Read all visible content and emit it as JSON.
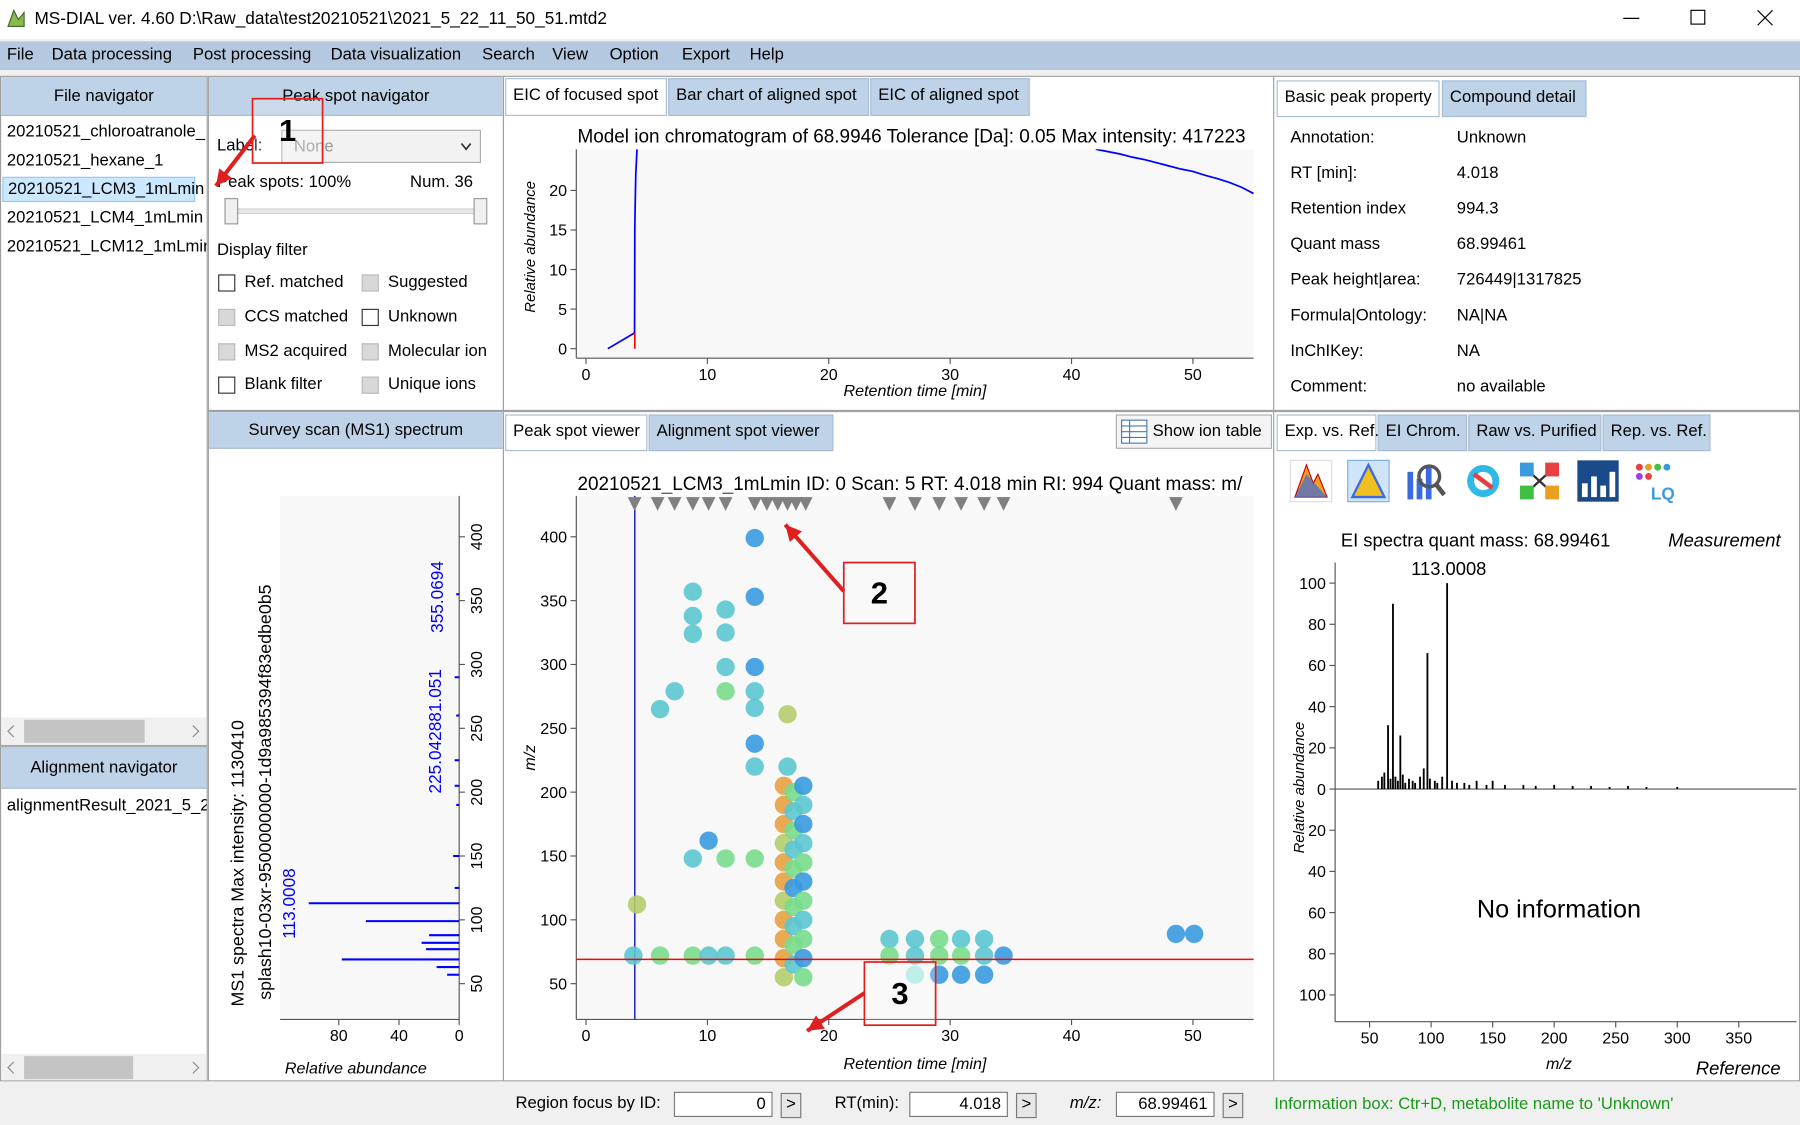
{
  "window": {
    "title": "MS-DIAL ver. 4.60 D:\\Raw_data\\test20210521\\2021_5_22_11_50_51.mtd2"
  },
  "menu": [
    "File",
    "Data processing",
    "Post processing",
    "Data visualization",
    "Search",
    "View",
    "Option",
    "Export",
    "Help"
  ],
  "file_navigator": {
    "title": "File navigator",
    "files": [
      "20210521_chloroatranole_",
      "20210521_hexane_1",
      "20210521_LCM3_1mLmin",
      "20210521_LCM4_1mLmin",
      "20210521_LCM12_1mLmin"
    ],
    "selected": 2
  },
  "alignment_navigator": {
    "title": "Alignment navigator",
    "files": [
      "alignmentResult_2021_5_2"
    ]
  },
  "peak_spot_navigator": {
    "title": "Peak spot navigator",
    "label": "Label:",
    "label_value": "None",
    "peak_spots": "Peak spots: 100%",
    "num": "Num. 36",
    "display_filter": "Display filter",
    "filters": [
      {
        "label": "Ref. matched",
        "enabled": true
      },
      {
        "label": "Suggested",
        "enabled": false
      },
      {
        "label": "CCS matched",
        "enabled": false
      },
      {
        "label": "Unknown",
        "enabled": true
      },
      {
        "label": "MS2 acquired",
        "enabled": false
      },
      {
        "label": "Molecular ion",
        "enabled": false
      },
      {
        "label": "Blank filter",
        "enabled": true
      },
      {
        "label": "Unique ions",
        "enabled": false
      }
    ]
  },
  "eic": {
    "tabs": [
      "EIC of focused spot",
      "Bar chart of aligned spot",
      "EIC of aligned spot"
    ],
    "chart": {
      "type": "line",
      "title": "Model ion chromatogram of 68.9946 Tolerance [Da]: 0.05  Max intensity: 417223",
      "x_label": "Retention time [min]",
      "y_label": "Relative abundance",
      "xlim": [
        -0.8,
        55
      ],
      "ylim": [
        -1.2,
        25.2
      ],
      "xticks": [
        0,
        10,
        20,
        30,
        40,
        50
      ],
      "yticks": [
        0,
        5,
        10,
        15,
        20
      ],
      "series": [
        {
          "color": "#0000ff",
          "x": [
            1.8,
            4.0,
            4.02,
            4.05,
            4.1,
            4.2,
            null,
            42,
            43,
            44,
            45,
            46,
            47,
            48,
            49,
            50,
            51,
            52,
            53,
            54,
            55
          ],
          "values": [
            0,
            2,
            15,
            18,
            22,
            25.2,
            null,
            25.2,
            24.9,
            24.6,
            24.2,
            23.9,
            23.5,
            23.1,
            22.7,
            22.4,
            21.9,
            21.5,
            21.0,
            20.4,
            19.6
          ]
        }
      ]
    }
  },
  "survey_scan": {
    "title": "Survey scan (MS1) spectrum",
    "chart": {
      "type": "bar",
      "y_label": "MS1 spectra Max intensity: 1130410",
      "splash": "splash10-03xr-9500000000-1d9a985394f83edbe0b5",
      "x_label": "Relative abundance",
      "xlim": [
        0,
        119
      ],
      "x_reversed": true,
      "xticks": [
        80,
        40,
        0
      ],
      "ylim": [
        22,
        432
      ],
      "yticks": [
        50,
        100,
        150,
        200,
        250,
        300,
        350,
        400
      ],
      "color": "#0000ff",
      "mz": [
        57,
        63,
        69,
        77,
        82,
        88,
        99,
        113,
        125,
        150,
        190,
        205,
        225,
        260,
        290,
        355
      ],
      "values": [
        8,
        15,
        78,
        22,
        25,
        20,
        62,
        100,
        3,
        4,
        2,
        3,
        3,
        2,
        3,
        2
      ],
      "peak_labels": [
        "113.0008",
        "225.042881.051",
        "355.0694"
      ]
    }
  },
  "peak_spot_viewer": {
    "tabs": [
      "Peak spot viewer",
      "Alignment spot viewer"
    ],
    "button": "Show ion table",
    "chart": {
      "type": "scatter",
      "title": "20210521_LCM3_1mLmin  ID: 0  Scan: 5  RT: 4.018 min  RI: 994  Quant mass: m/",
      "x_label": "Retention time [min]",
      "y_label": "m/z",
      "xlim": [
        -0.8,
        55
      ],
      "ylim": [
        22,
        432
      ],
      "xticks": [
        0,
        10,
        20,
        30,
        40,
        50
      ],
      "yticks": [
        50,
        100,
        150,
        200,
        250,
        300,
        350,
        400
      ],
      "x": [
        13.9,
        8.8,
        8.8,
        8.8,
        11.5,
        11.5,
        13.9,
        7.3,
        6.1,
        11.5,
        11.5,
        13.9,
        13.9,
        13.9,
        16.6,
        13.9,
        13.9,
        16.6,
        10.1,
        8.8,
        11.5,
        13.9,
        4.2,
        3.9,
        6.1,
        8.8,
        10.1,
        11.5,
        13.9,
        16.3,
        16.3,
        16.3,
        16.3,
        16.3,
        16.3,
        16.3,
        16.3,
        16.3,
        16.3,
        16.3,
        17.1,
        17.1,
        17.1,
        17.1,
        17.1,
        17.1,
        17.1,
        17.1,
        17.1,
        17.1,
        17.9,
        17.9,
        17.9,
        17.9,
        17.9,
        17.9,
        17.9,
        17.9,
        17.9,
        17.9,
        17.9,
        25,
        27.1,
        29.1,
        30.9,
        32.8,
        25,
        27.1,
        29.1,
        30.9,
        32.8,
        34.4,
        27.1,
        29.1,
        30.9,
        32.8,
        48.6,
        50.1
      ],
      "values": [
        399,
        357,
        338,
        324,
        343,
        325,
        353,
        279,
        265,
        298,
        279,
        298,
        279,
        266,
        261,
        238,
        220,
        220,
        162,
        148,
        148,
        148,
        112,
        72,
        72,
        72,
        72,
        72,
        72,
        205,
        190,
        175,
        160,
        145,
        130,
        115,
        100,
        85,
        70,
        55,
        200,
        185,
        170,
        155,
        140,
        125,
        110,
        95,
        80,
        65,
        205,
        190,
        175,
        160,
        145,
        130,
        115,
        100,
        85,
        70,
        55,
        85,
        85,
        85,
        85,
        85,
        72,
        72,
        72,
        72,
        72,
        72,
        57,
        57,
        57,
        57,
        89,
        89
      ],
      "colors": [
        "#3a9ae0",
        "#5cc6d0",
        "#5cc6d0",
        "#5cc6d0",
        "#5cc6d0",
        "#5cc6d0",
        "#3a9ae0",
        "#5cc6d0",
        "#5cc6d0",
        "#5cc6d0",
        "#78dc8c",
        "#3a9ae0",
        "#5cc6d0",
        "#5cc6d0",
        "#b4cc6c",
        "#3a9ae0",
        "#5cc6d0",
        "#5cc6d0",
        "#3a9ae0",
        "#5cc6d0",
        "#78dc8c",
        "#78dc8c",
        "#b4cc6c",
        "#5cc6d0",
        "#78dc8c",
        "#78dc8c",
        "#5cc6d0",
        "#5cc6d0",
        "#78dc8c",
        "#e8a040",
        "#e8a040",
        "#e8a040",
        "#b4cc6c",
        "#e8a040",
        "#e8a040",
        "#b4cc6c",
        "#e8a040",
        "#e8a040",
        "#e8a040",
        "#b4cc6c",
        "#78dc8c",
        "#5cc6d0",
        "#78dc8c",
        "#5cc6d0",
        "#78dc8c",
        "#3a9ae0",
        "#78dc8c",
        "#5cc6d0",
        "#78dc8c",
        "#5cc6d0",
        "#3a9ae0",
        "#5cc6d0",
        "#3a9ae0",
        "#5cc6d0",
        "#78dc8c",
        "#3a9ae0",
        "#78dc8c",
        "#5cc6d0",
        "#78dc8c",
        "#3a9ae0",
        "#78dc8c",
        "#5cc6d0",
        "#5cc6d0",
        "#78dc8c",
        "#5cc6d0",
        "#5cc6d0",
        "#78dc8c",
        "#5cc6d0",
        "#78dc8c",
        "#78dc8c",
        "#5cc6d0",
        "#3a9ae0",
        "#a8e8e0",
        "#3a9ae0",
        "#3a9ae0",
        "#3a9ae0",
        "#3a9ae0",
        "#3a9ae0"
      ],
      "markers": [
        4.0,
        5.9,
        7.3,
        8.8,
        10.1,
        11.5,
        13.9,
        14.9,
        15.8,
        16.6,
        17.3,
        18.1,
        25.0,
        27.1,
        29.1,
        30.9,
        32.8,
        34.4,
        48.6
      ]
    }
  },
  "properties": {
    "tabs": [
      "Basic peak property",
      "Compound detail"
    ],
    "rows": [
      [
        "Annotation:",
        "Unknown"
      ],
      [
        "RT [min]:",
        4.018
      ],
      [
        "Retention index",
        994.3
      ],
      [
        "Quant mass",
        68.99461
      ],
      [
        "Peak height|area:",
        "726449|1317825"
      ],
      [
        "Formula|Ontology:",
        "NA|NA"
      ],
      [
        "InChIKey:",
        "NA"
      ],
      [
        "Comment:",
        "no available"
      ]
    ]
  },
  "spectrum_panel": {
    "tabs": [
      "Exp. vs. Ref.",
      "EI Chrom.",
      "Raw vs. Purified",
      "Rep. vs. Ref."
    ],
    "chart": {
      "type": "bar",
      "title": "EI spectra quant mass: 68.99461",
      "measurement": "Measurement",
      "reference": "Reference",
      "top_label": "113.0008",
      "no_info": "No information",
      "x_label": "m/z",
      "y_label": "Relative abundance",
      "xlim": [
        22,
        397
      ],
      "xticks": [
        50,
        100,
        150,
        200,
        250,
        300,
        350
      ],
      "ylim": [
        -113,
        110
      ],
      "yticks": [
        {
          "value": -100,
          "label": "100"
        },
        {
          "value": -80,
          "label": "80"
        },
        {
          "value": -60,
          "label": "60"
        },
        {
          "value": -40,
          "label": "40"
        },
        {
          "value": -20,
          "label": "20"
        },
        0,
        20,
        40,
        60,
        80,
        100
      ],
      "color": "#000000",
      "mz": [
        57,
        60,
        62,
        65,
        67,
        69,
        71,
        73,
        75,
        77,
        79,
        82,
        85,
        87,
        91,
        94,
        97,
        99,
        103,
        105,
        109,
        113,
        117,
        121,
        127,
        131,
        137,
        145,
        150,
        160,
        175,
        185,
        200,
        215,
        230,
        245,
        260,
        275,
        300
      ],
      "values": [
        4,
        6,
        8,
        31,
        5,
        90,
        6,
        4,
        26,
        7,
        3,
        5,
        4,
        3,
        6,
        10,
        66,
        5,
        4,
        3,
        6,
        100,
        4,
        3,
        3,
        2,
        4,
        2,
        4,
        2,
        2,
        1.5,
        2,
        1.5,
        1.5,
        1,
        1.5,
        1,
        1
      ]
    }
  },
  "status": {
    "region_label": "Region focus by ID:",
    "id": 0,
    "rt_label": "RT(min):",
    "rt": 4.018,
    "mz_label": "m/z:",
    "mz": 68.99461,
    "go": ">",
    "info": "Information box: Ctr+D, metabolite name to 'Unknown'"
  },
  "annotations": [
    "1",
    "2",
    "3"
  ]
}
